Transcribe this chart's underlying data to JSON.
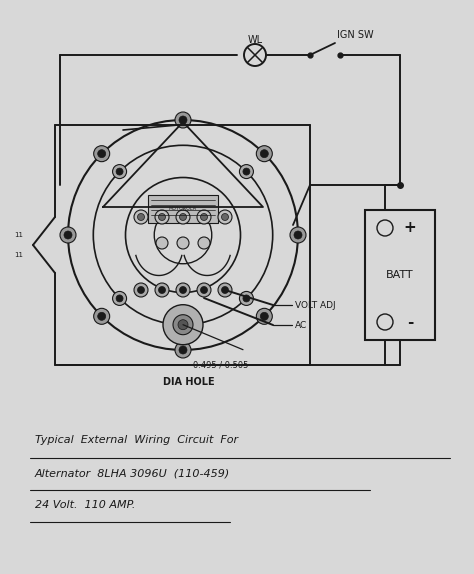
{
  "bg_color": "#d8d8d8",
  "line_color": "#1a1a1a",
  "title_lines": [
    "Typical  External  Wiring  Circuit  For",
    "Alternator  8LHA 3096U  (110-459)",
    "24 Volt.  110 AMP."
  ],
  "fig_w": 4.74,
  "fig_h": 5.74,
  "dpi": 100
}
